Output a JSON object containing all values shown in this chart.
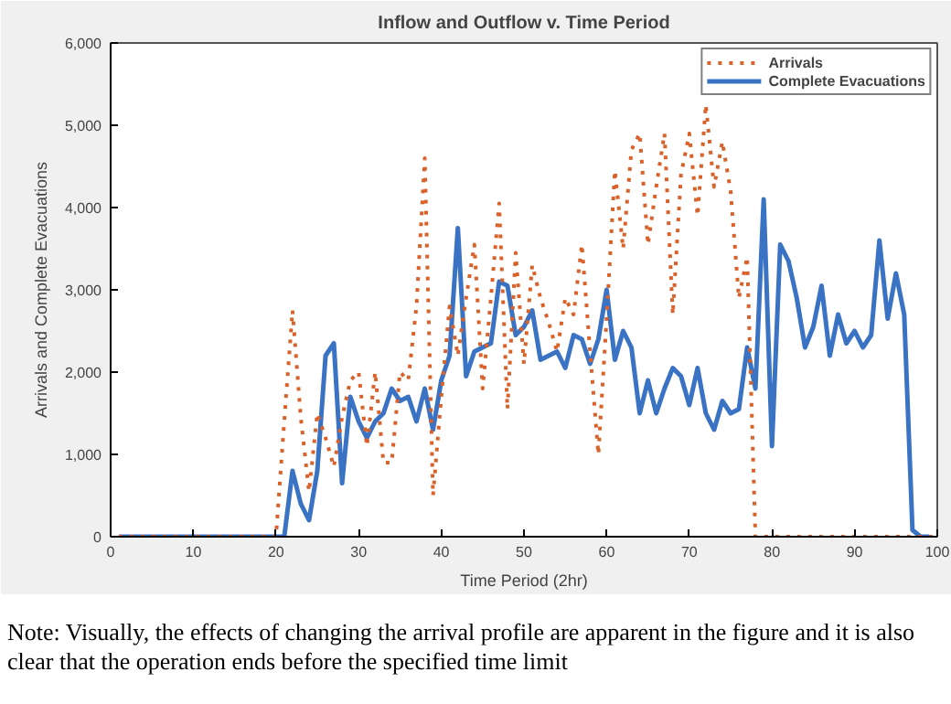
{
  "chart_data": {
    "type": "line",
    "title": "Inflow and Outflow v. Time Period",
    "xlabel": "Time Period (2hr)",
    "ylabel": "Arrivals and Complete Evacuations",
    "x": [
      1,
      2,
      3,
      4,
      5,
      6,
      7,
      8,
      9,
      10,
      11,
      12,
      13,
      14,
      15,
      16,
      17,
      18,
      19,
      20,
      21,
      22,
      23,
      24,
      25,
      26,
      27,
      28,
      29,
      30,
      31,
      32,
      33,
      34,
      35,
      36,
      37,
      38,
      39,
      40,
      41,
      42,
      43,
      44,
      45,
      46,
      47,
      48,
      49,
      50,
      51,
      52,
      53,
      54,
      55,
      56,
      57,
      58,
      59,
      60,
      61,
      62,
      63,
      64,
      65,
      66,
      67,
      68,
      69,
      70,
      71,
      72,
      73,
      74,
      75,
      76,
      77,
      78,
      79,
      80,
      81,
      82,
      83,
      84,
      85,
      86,
      87,
      88,
      89,
      90,
      91,
      92,
      93,
      94,
      95,
      96,
      97,
      98,
      99,
      100
    ],
    "series": [
      {
        "name": "Arrivals",
        "color": "#d9622b",
        "line_style": "dotted",
        "values": [
          0,
          0,
          0,
          0,
          0,
          0,
          0,
          0,
          0,
          0,
          0,
          0,
          0,
          0,
          0,
          0,
          0,
          0,
          0,
          0,
          1400,
          2750,
          1450,
          550,
          1500,
          1200,
          850,
          1450,
          1900,
          2000,
          1100,
          2000,
          900,
          900,
          2000,
          1900,
          2800,
          4600,
          500,
          1700,
          2800,
          2200,
          2900,
          3550,
          1800,
          2900,
          4050,
          1550,
          3450,
          2100,
          3300,
          2900,
          2600,
          2250,
          2900,
          2700,
          3550,
          2250,
          1000,
          2650,
          4450,
          3500,
          4700,
          4900,
          3550,
          4250,
          4900,
          2700,
          4400,
          4900,
          3900,
          5250,
          4250,
          4800,
          4200,
          2900,
          3400,
          0,
          0,
          0,
          0,
          0,
          0,
          0,
          0,
          0,
          0,
          0,
          0,
          0,
          0,
          0,
          0,
          0,
          0,
          0,
          0,
          0,
          0,
          0
        ]
      },
      {
        "name": "Complete Evacuations",
        "color": "#3a72c4",
        "line_style": "solid",
        "values": [
          0,
          0,
          0,
          0,
          0,
          0,
          0,
          0,
          0,
          0,
          0,
          0,
          0,
          0,
          0,
          0,
          0,
          0,
          0,
          0,
          0,
          800,
          400,
          200,
          800,
          2200,
          2350,
          650,
          1700,
          1400,
          1200,
          1400,
          1500,
          1800,
          1650,
          1700,
          1400,
          1800,
          1300,
          1900,
          2200,
          3750,
          1950,
          2250,
          2300,
          2350,
          3100,
          3050,
          2450,
          2550,
          2750,
          2150,
          2200,
          2250,
          2050,
          2450,
          2400,
          2100,
          2400,
          3000,
          2150,
          2500,
          2300,
          1500,
          1900,
          1500,
          1800,
          2050,
          1950,
          1600,
          2050,
          1500,
          1300,
          1650,
          1500,
          1550,
          2300,
          1800,
          4100,
          1100,
          3550,
          3350,
          2900,
          2300,
          2550,
          3050,
          2200,
          2700,
          2350,
          2500,
          2300,
          2450,
          3600,
          2650,
          3200,
          2700,
          80,
          0,
          0,
          null
        ]
      }
    ],
    "xlim": [
      0,
      100
    ],
    "xticks": [
      0,
      10,
      20,
      30,
      40,
      50,
      60,
      70,
      80,
      90,
      100
    ],
    "ylim": [
      0,
      6000
    ],
    "yticks": [
      0,
      {
        "value": 1000,
        "label": "1,000"
      },
      {
        "value": 2000,
        "label": "2,000"
      },
      {
        "value": 3000,
        "label": "3,000"
      },
      {
        "value": 4000,
        "label": "4,000"
      },
      {
        "value": 5000,
        "label": "5,000"
      },
      {
        "value": 6000,
        "label": "6,000"
      }
    ],
    "grid": false,
    "legend": "top right",
    "marker": "none",
    "annotations": [
      "Note: Visually, the effects of changing the arrival profile are apparent in the figure and it is also clear that the operation ends before the specified time limit"
    ]
  }
}
